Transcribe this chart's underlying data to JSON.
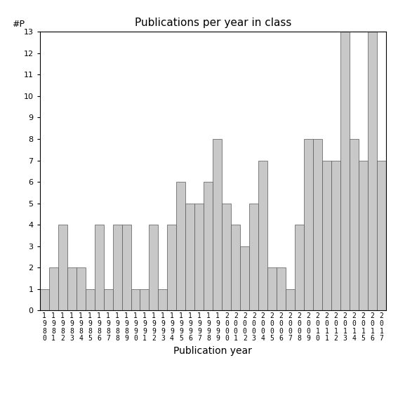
{
  "title": "Publications per year in class",
  "xlabel": "Publication year",
  "ylabel": "#P",
  "bar_color": "#c8c8c8",
  "bar_edgecolor": "#555555",
  "background_color": "#ffffff",
  "ylim": [
    0,
    13
  ],
  "yticks": [
    0,
    1,
    2,
    3,
    4,
    5,
    6,
    7,
    8,
    9,
    10,
    11,
    12,
    13
  ],
  "years": [
    "1980",
    "1981",
    "1982",
    "1983",
    "1984",
    "1985",
    "1986",
    "1987",
    "1988",
    "1989",
    "1990",
    "1991",
    "1992",
    "1993",
    "1994",
    "1995",
    "1996",
    "1997",
    "1998",
    "1999",
    "2000",
    "2001",
    "2002",
    "2003",
    "2004",
    "2005",
    "2006",
    "2007",
    "2008",
    "2009",
    "2010",
    "2011",
    "2012",
    "2013",
    "2014",
    "2015",
    "2016",
    "2017"
  ],
  "values": [
    1,
    2,
    4,
    2,
    2,
    1,
    4,
    1,
    4,
    4,
    1,
    1,
    4,
    1,
    4,
    6,
    5,
    5,
    6,
    8,
    5,
    4,
    3,
    5,
    7,
    2,
    2,
    1,
    4,
    8,
    8,
    7,
    7,
    13,
    8,
    7,
    13,
    7
  ],
  "figsize": [
    5.67,
    5.67
  ],
  "dpi": 100,
  "title_fontsize": 11,
  "tick_fontsize": 7,
  "label_fontsize": 10,
  "ylabel_fontsize": 9
}
